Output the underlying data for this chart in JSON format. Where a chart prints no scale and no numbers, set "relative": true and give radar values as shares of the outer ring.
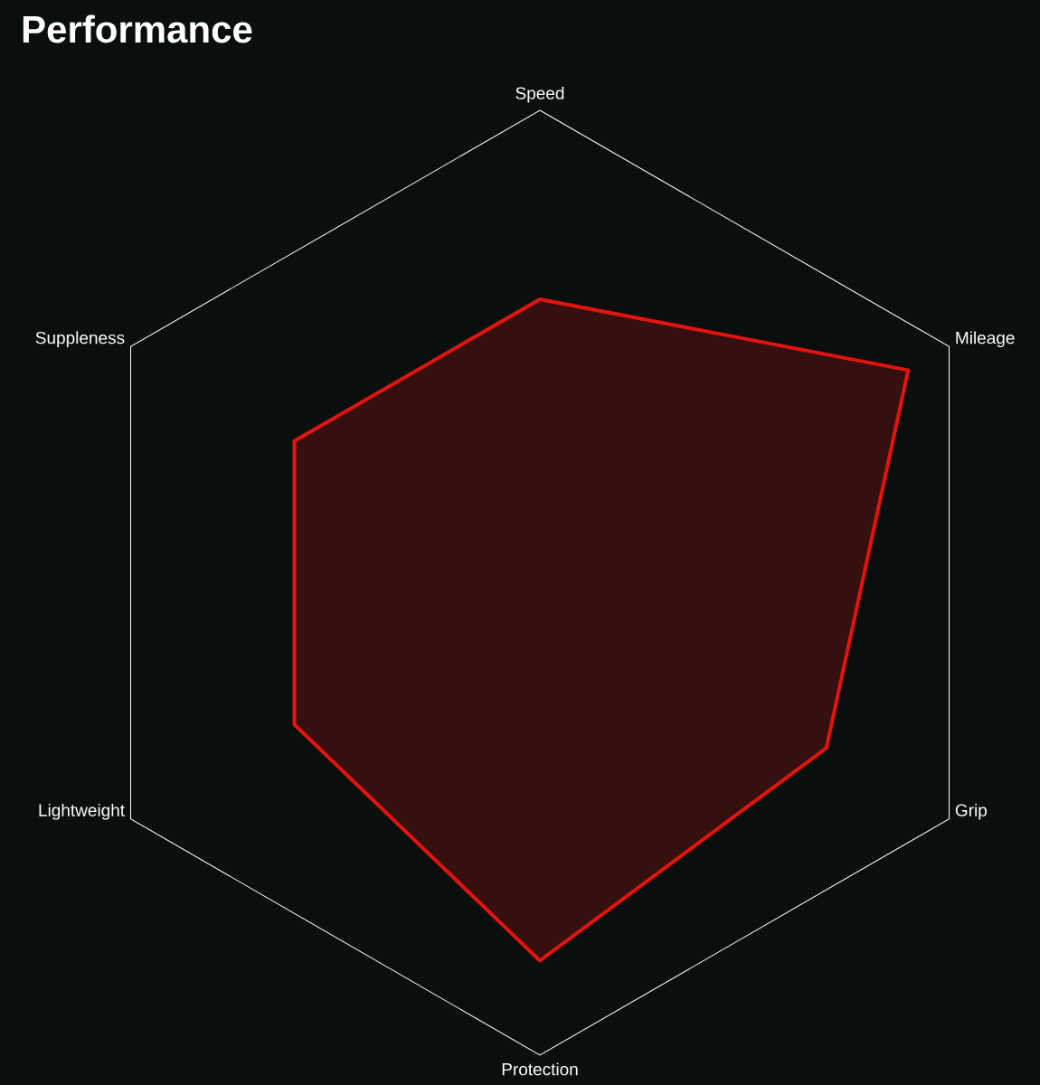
{
  "chart_data": {
    "type": "radar",
    "title": "Performance",
    "relative": true,
    "categories": [
      "Speed",
      "Mileage",
      "Grip",
      "Protection",
      "Lightweight",
      "Suppleness"
    ],
    "series": [
      {
        "color": "#e3140f",
        "values": [
          0.6,
          0.9,
          0.7,
          0.8,
          0.6,
          0.6
        ]
      }
    ]
  }
}
